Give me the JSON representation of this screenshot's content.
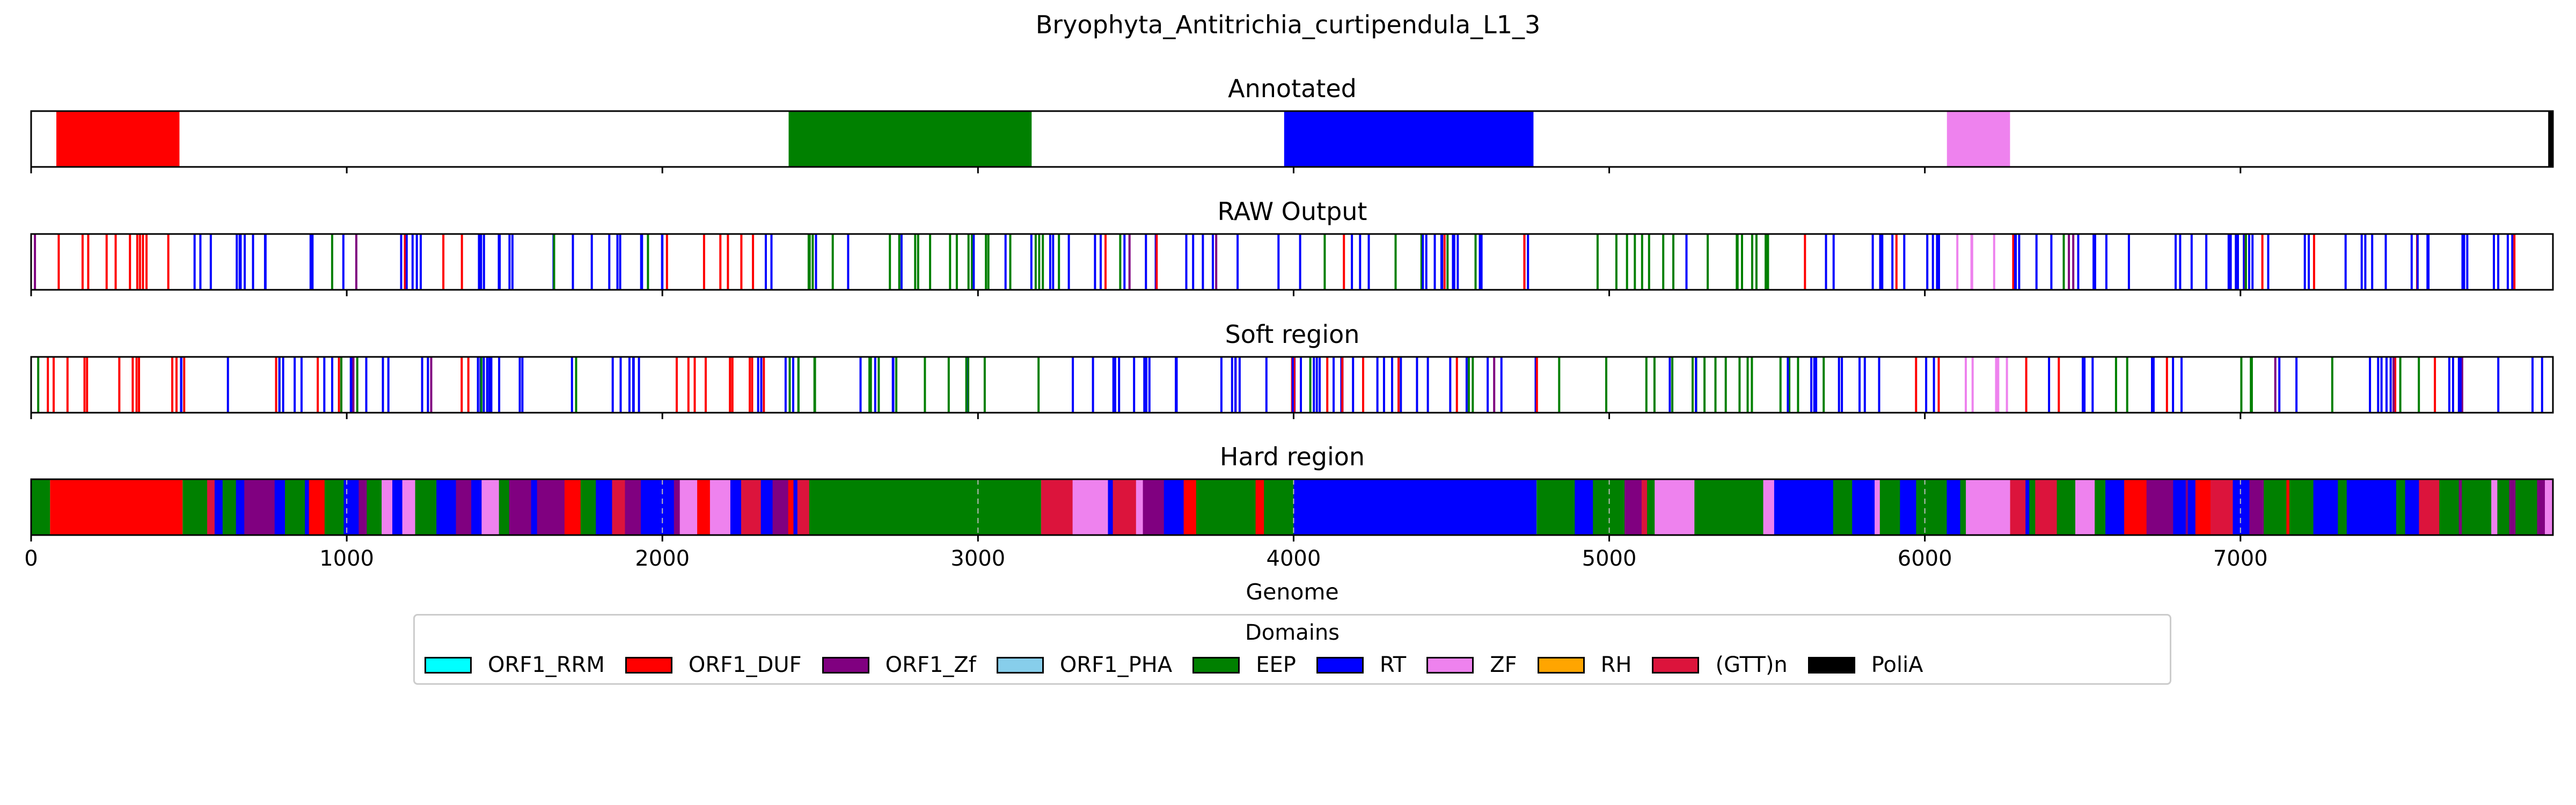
{
  "figure_title": "Bryophyta_Antitrichia_curtipendula_L1_3",
  "chart_data": {
    "type": "genome_track",
    "xlabel": "Genome",
    "xlim": [
      0,
      7990
    ],
    "xticks": [
      0,
      1000,
      2000,
      3000,
      4000,
      5000,
      6000,
      7000
    ],
    "colors": {
      "ORF1_RRM": "#00ffff",
      "ORF1_DUF": "#ff0000",
      "ORF1_Zf": "#800080",
      "ORF1_PHA": "#87ceeb",
      "EEP": "#008000",
      "RT": "#0000ff",
      "ZF": "#ee82ee",
      "RH": "#ffa500",
      "(GTT)n": "#dc143c",
      "PoliA": "#000000"
    },
    "tracks": [
      {
        "name": "Annotated",
        "segments": [
          {
            "domain": "ORF1_DUF",
            "start": 80,
            "end": 470
          },
          {
            "domain": "EEP",
            "start": 2400,
            "end": 3170
          },
          {
            "domain": "RT",
            "start": 3970,
            "end": 4760
          },
          {
            "domain": "ZF",
            "start": 6070,
            "end": 6270
          },
          {
            "domain": "PoliA",
            "start": 7975,
            "end": 7990
          }
        ]
      },
      {
        "name": "RAW Output",
        "segments": [
          {
            "domain": "RT",
            "start": 0,
            "end": 30,
            "pattern": "bars"
          },
          {
            "domain": "ORF1_DUF",
            "start": 30,
            "end": 470,
            "pattern": "bars"
          },
          {
            "domain": "RT",
            "start": 470,
            "end": 1280,
            "pattern": "bars"
          },
          {
            "domain": "ORF1_DUF",
            "start": 1280,
            "end": 1400,
            "pattern": "bars"
          },
          {
            "domain": "RT",
            "start": 1400,
            "end": 2000,
            "pattern": "bars"
          },
          {
            "domain": "ORF1_DUF",
            "start": 2000,
            "end": 2300,
            "pattern": "bars"
          },
          {
            "domain": "RT",
            "start": 2300,
            "end": 2400,
            "pattern": "bars"
          },
          {
            "domain": "EEP",
            "start": 2400,
            "end": 3200,
            "pattern": "bars"
          },
          {
            "domain": "RT",
            "start": 3200,
            "end": 4800,
            "pattern": "bars"
          },
          {
            "domain": "EEP",
            "start": 4800,
            "end": 5600,
            "pattern": "bars"
          },
          {
            "domain": "RT",
            "start": 5600,
            "end": 6050,
            "pattern": "bars"
          },
          {
            "domain": "ZF",
            "start": 6060,
            "end": 6260,
            "pattern": "bars"
          },
          {
            "domain": "RT",
            "start": 6260,
            "end": 7990,
            "pattern": "bars"
          }
        ]
      },
      {
        "name": "Soft region",
        "segments": [
          {
            "domain": "RT",
            "start": 0,
            "end": 30,
            "pattern": "bars"
          },
          {
            "domain": "ORF1_DUF",
            "start": 30,
            "end": 470,
            "pattern": "bars"
          },
          {
            "domain": "RT",
            "start": 470,
            "end": 1280,
            "pattern": "bars"
          },
          {
            "domain": "ORF1_DUF",
            "start": 1280,
            "end": 1400,
            "pattern": "bars"
          },
          {
            "domain": "RT",
            "start": 1400,
            "end": 2000,
            "pattern": "bars"
          },
          {
            "domain": "ORF1_DUF",
            "start": 2000,
            "end": 2300,
            "pattern": "bars"
          },
          {
            "domain": "RT",
            "start": 2300,
            "end": 2400,
            "pattern": "bars"
          },
          {
            "domain": "EEP",
            "start": 2400,
            "end": 3200,
            "pattern": "bars"
          },
          {
            "domain": "RT",
            "start": 3200,
            "end": 4800,
            "pattern": "bars"
          },
          {
            "domain": "EEP",
            "start": 4800,
            "end": 5600,
            "pattern": "bars"
          },
          {
            "domain": "RT",
            "start": 5600,
            "end": 6050,
            "pattern": "bars"
          },
          {
            "domain": "ZF",
            "start": 6060,
            "end": 6260,
            "pattern": "bars"
          },
          {
            "domain": "RT",
            "start": 6260,
            "end": 7990,
            "pattern": "bars"
          }
        ]
      },
      {
        "name": "Hard region",
        "segments": [
          {
            "domain": "EEP",
            "start": 0,
            "end": 60
          },
          {
            "domain": "ORF1_DUF",
            "start": 60,
            "end": 480
          },
          {
            "domain": "RT",
            "start": 480,
            "end": 2470,
            "pattern": "mixed"
          },
          {
            "domain": "EEP",
            "start": 2470,
            "end": 3200
          },
          {
            "domain": "RT",
            "start": 3200,
            "end": 4000,
            "pattern": "mixed"
          },
          {
            "domain": "RT",
            "start": 4000,
            "end": 4770
          },
          {
            "domain": "EEP",
            "start": 4770,
            "end": 5200,
            "pattern": "mixed"
          },
          {
            "domain": "ZF",
            "start": 5200,
            "end": 5270
          },
          {
            "domain": "EEP",
            "start": 5270,
            "end": 6130,
            "pattern": "mixed"
          },
          {
            "domain": "ZF",
            "start": 6130,
            "end": 6270
          },
          {
            "domain": "RT",
            "start": 6270,
            "end": 7990,
            "pattern": "mixed"
          }
        ]
      }
    ],
    "legend": {
      "title": "Domains",
      "placement": "bottom-center",
      "entries": [
        "ORF1_RRM",
        "ORF1_DUF",
        "ORF1_Zf",
        "ORF1_PHA",
        "EEP",
        "RT",
        "ZF",
        "RH",
        "(GTT)n",
        "PoliA"
      ]
    }
  }
}
